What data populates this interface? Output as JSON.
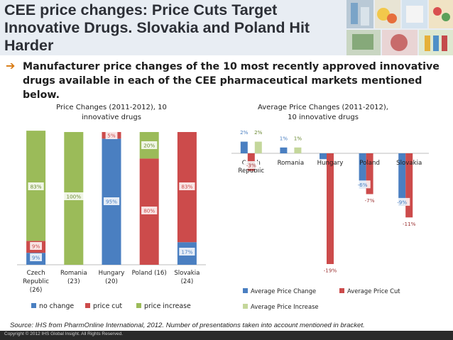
{
  "header": {
    "title": "CEE price changes: Price Cuts Target Innovative Drugs. Slovakia and Poland Hit Harder",
    "subtitle": "Manufacturer price changes of the 10 most recently approved innovative drugs available in each of the CEE pharmaceutical markets mentioned below."
  },
  "colors": {
    "no_change": "#4a7fc1",
    "price_cut": "#cc4b4b",
    "price_increase": "#9bbb59",
    "increase_light": "#c4d79b"
  },
  "chart_data": [
    {
      "type": "bar",
      "stacked": true,
      "percent": true,
      "title": "Price Changes (2011-2012), 10 innovative drugs",
      "title_lines": [
        "Price Changes (2011-2012), 10",
        "innovative drugs"
      ],
      "categories": [
        "Czech Republic (26)",
        "Romania (23)",
        "Hungary (20)",
        "Poland (16)",
        "Slovakia (24)"
      ],
      "category_lines": [
        [
          "Czech",
          "Republic",
          "(26)"
        ],
        [
          "Romania",
          "(23)"
        ],
        [
          "Hungary",
          "(20)"
        ],
        [
          "Poland (16)"
        ],
        [
          "Slovakia",
          "(24)"
        ]
      ],
      "series": [
        {
          "name": "no change",
          "values": [
            9,
            0,
            95,
            0,
            17
          ],
          "labels": [
            "9%",
            "",
            "95%",
            "",
            "17%"
          ]
        },
        {
          "name": "price cut",
          "values": [
            9,
            0,
            5,
            80,
            83
          ],
          "labels": [
            "9%",
            "",
            "5%",
            "80%",
            "83%"
          ]
        },
        {
          "name": "price increase",
          "values": [
            83,
            100,
            0,
            20,
            0
          ],
          "labels": [
            "83%",
            "100%",
            "",
            "20%",
            ""
          ]
        }
      ],
      "ylim": [
        0,
        100
      ],
      "legend": [
        "no change",
        "price cut",
        "price increase"
      ]
    },
    {
      "type": "bar",
      "title": "Average Price Changes (2011-2012), 10 innovative drugs",
      "title_lines": [
        "Average Price Changes (2011-2012),",
        "10 innovative drugs"
      ],
      "categories": [
        "Czech Republic",
        "Romania",
        "Hungary",
        "Poland",
        "Slovakia"
      ],
      "category_lines": [
        [
          "Czech",
          "Republic"
        ],
        [
          "Romania"
        ],
        [
          "Hungary"
        ],
        [
          "Poland"
        ],
        [
          "Slovakia"
        ]
      ],
      "series": [
        {
          "name": "Average Price Change",
          "values": [
            2,
            1,
            -1,
            -6,
            -9
          ],
          "labels": [
            "2%",
            "1%",
            "",
            "-6%",
            "-9%"
          ]
        },
        {
          "name": "Average Price Cut",
          "values": [
            -3,
            0,
            -19,
            -7,
            -11
          ],
          "labels": [
            "-3%",
            "",
            "-19%",
            "-7%",
            "-11%"
          ]
        },
        {
          "name": "Average Price Increase",
          "values": [
            2,
            1,
            0,
            0,
            0
          ],
          "labels": [
            "2%",
            "1%",
            "",
            "",
            ""
          ]
        }
      ],
      "ylim": [
        -20,
        3
      ],
      "legend": [
        "Average Price Change",
        "Average Price Cut",
        "Average Price Increase"
      ]
    }
  ],
  "source": "Source: IHS from PharmOnline International, 2012. Number of presentations taken into account mentioned in bracket.",
  "footer": "Copyright © 2012 IHS Global Insight. All Rights Reserved."
}
